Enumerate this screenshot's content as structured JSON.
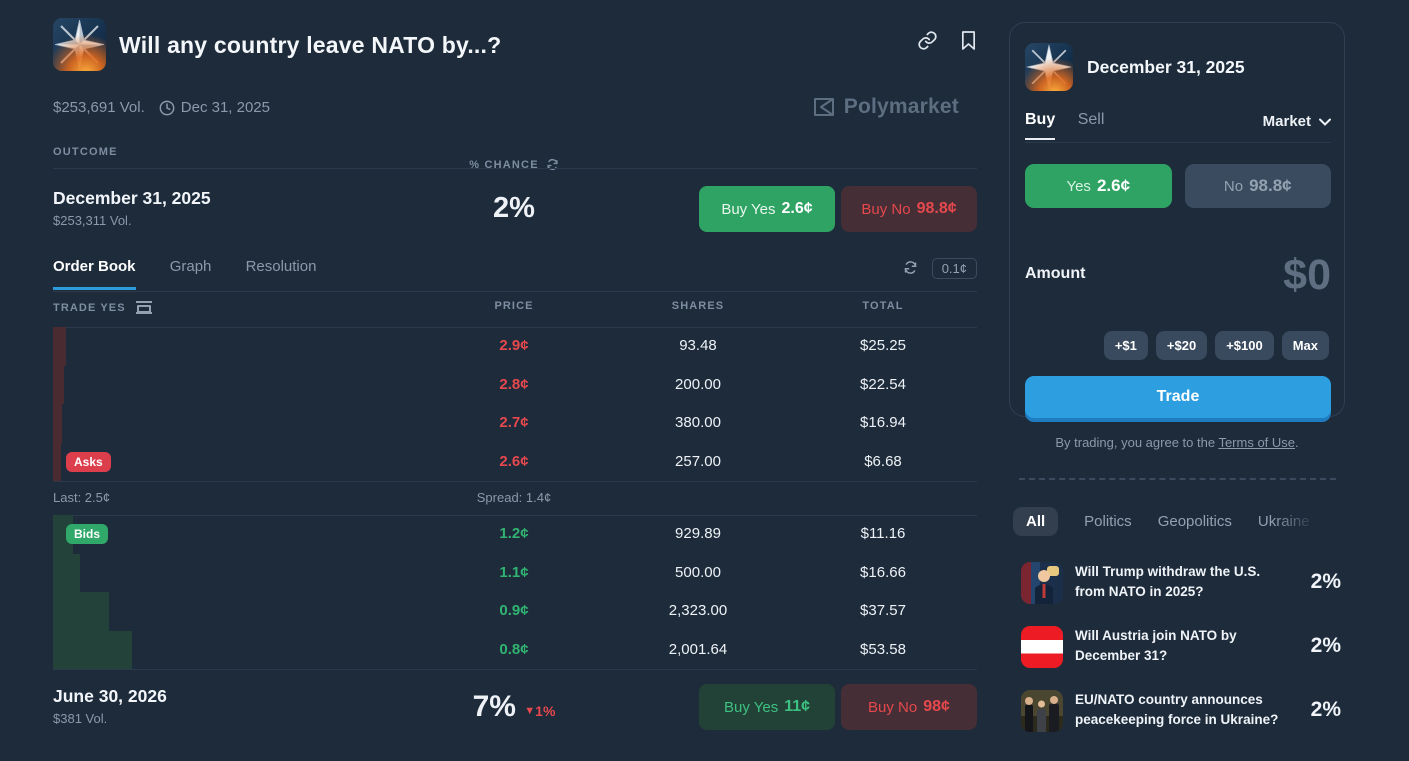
{
  "header": {
    "title": "Will any country leave NATO by...?",
    "volume": "$253,691 Vol.",
    "end_date": "Dec 31, 2025",
    "brand": "Polymarket"
  },
  "outcome_table": {
    "outcome_col": "OUTCOME",
    "chance_col": "% CHANCE"
  },
  "outcomes": [
    {
      "name": "December 31, 2025",
      "volume": "$253,311 Vol.",
      "chance": "2%",
      "buy_yes_label": "Buy Yes",
      "yes_price": "2.6¢",
      "buy_no_label": "Buy No",
      "no_price": "98.8¢"
    },
    {
      "name": "June 30, 2026",
      "volume": "$381 Vol.",
      "chance": "7%",
      "change_icon": "▼",
      "change": "1%",
      "buy_yes_label": "Buy Yes",
      "yes_price": "11¢",
      "buy_no_label": "Buy No",
      "no_price": "98¢"
    }
  ],
  "tabs": {
    "order_book": "Order Book",
    "graph": "Graph",
    "resolution": "Resolution",
    "tick_size": "0.1¢"
  },
  "orderbook": {
    "trade_label": "TRADE YES",
    "price_col": "PRICE",
    "shares_col": "SHARES",
    "total_col": "TOTAL",
    "asks_label": "Asks",
    "bids_label": "Bids",
    "last": "Last: 2.5¢",
    "spread": "Spread: 1.4¢",
    "asks": [
      {
        "price": "2.9¢",
        "shares": "93.48",
        "total": "$25.25",
        "depth": 13
      },
      {
        "price": "2.8¢",
        "shares": "200.00",
        "total": "$22.54",
        "depth": 11
      },
      {
        "price": "2.7¢",
        "shares": "380.00",
        "total": "$16.94",
        "depth": 9
      },
      {
        "price": "2.6¢",
        "shares": "257.00",
        "total": "$6.68",
        "depth": 8
      }
    ],
    "bids": [
      {
        "price": "1.2¢",
        "shares": "929.89",
        "total": "$11.16",
        "depth": 20
      },
      {
        "price": "1.1¢",
        "shares": "500.00",
        "total": "$16.66",
        "depth": 27
      },
      {
        "price": "0.9¢",
        "shares": "2,323.00",
        "total": "$37.57",
        "depth": 56
      },
      {
        "price": "0.8¢",
        "shares": "2,001.64",
        "total": "$53.58",
        "depth": 79
      }
    ]
  },
  "panel": {
    "title": "December 31, 2025",
    "buy_tab": "Buy",
    "sell_tab": "Sell",
    "order_type": "Market",
    "yes_label": "Yes",
    "yes_price": "2.6¢",
    "no_label": "No",
    "no_price": "98.8¢",
    "amount_label": "Amount",
    "amount_value": "$0",
    "chips": {
      "c1": "+$1",
      "c2": "+$20",
      "c3": "+$100",
      "c4": "Max"
    },
    "trade_label": "Trade",
    "terms_prefix": "By trading, you agree to the ",
    "terms_link": "Terms of Use",
    "terms_suffix": "."
  },
  "categories": {
    "all": "All",
    "politics": "Politics",
    "geopolitics": "Geopolitics",
    "ukraine": "Ukraine"
  },
  "related": [
    {
      "title": "Will Trump withdraw the U.S. from NATO in 2025?",
      "chance": "2%"
    },
    {
      "title": "Will Austria join NATO by December 31?",
      "chance": "2%"
    },
    {
      "title": "EU/NATO country announces peacekeeping force in Ukraine?",
      "chance": "2%"
    }
  ]
}
